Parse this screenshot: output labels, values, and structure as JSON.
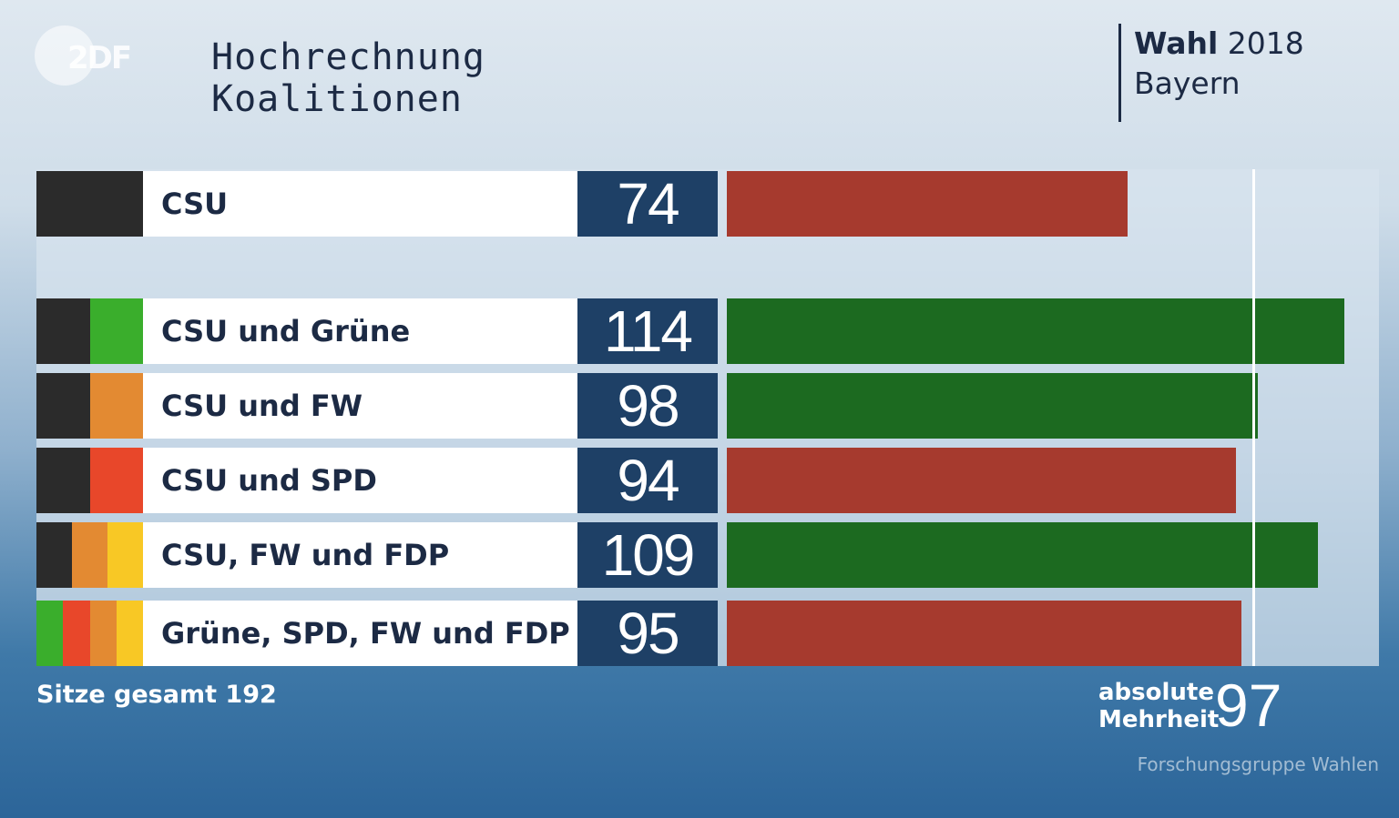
{
  "logo_text": "2DF",
  "header": {
    "title_line1": "Hochrechnung",
    "title_line2": "Koalitionen",
    "election_word": "Wahl",
    "election_year": "2018",
    "election_region": "Bayern"
  },
  "chart_data": {
    "type": "bar",
    "orientation": "horizontal",
    "categories": [
      "CSU",
      "CSU und Grüne",
      "CSU und FW",
      "CSU und SPD",
      "CSU, FW und FDP",
      "Grüne, SPD, FW und FDP"
    ],
    "values": [
      74,
      114,
      98,
      94,
      109,
      95
    ],
    "bar_colors": [
      "#a63a2e",
      "#1c6a20",
      "#1c6a20",
      "#a63a2e",
      "#1c6a20",
      "#a63a2e"
    ],
    "party_colors": [
      [
        "#2b2b2b",
        "#2b2b2b"
      ],
      [
        "#2b2b2b",
        "#3aae2c"
      ],
      [
        "#2b2b2b",
        "#e38a32"
      ],
      [
        "#2b2b2b",
        "#e8472a"
      ],
      [
        "#2b2b2b",
        "#e38a32",
        "#f8c825"
      ],
      [
        "#3aae2c",
        "#e8472a",
        "#e38a32",
        "#f8c825"
      ]
    ],
    "reference_line": 97,
    "total_label": "Sitze gesamt 192",
    "majority_label_line1": "absolute",
    "majority_label_line2": "Mehrheit",
    "majority_value": "97",
    "source": "Forschungsgruppe Wahlen"
  }
}
